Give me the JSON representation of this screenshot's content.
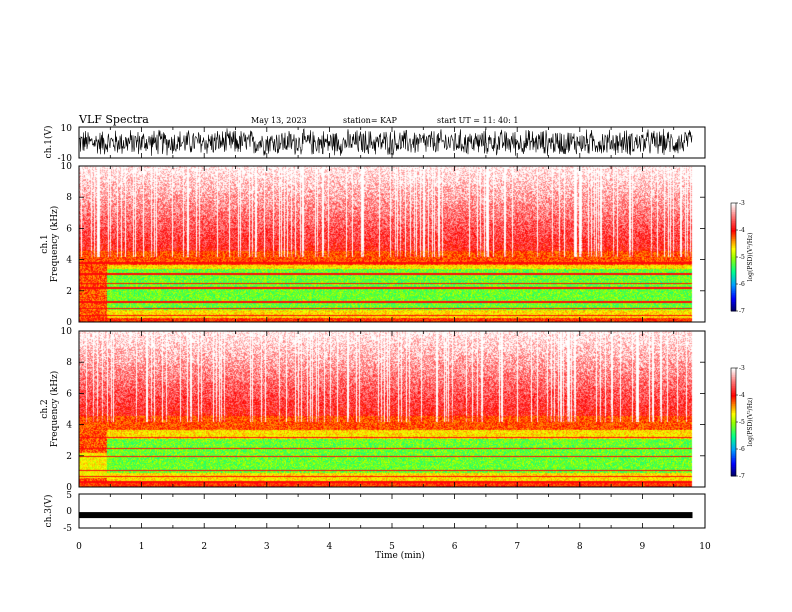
{
  "header": {
    "title": "VLF Spectra",
    "date": "May 13, 2023",
    "station": "station= KAP",
    "start": "start  UT =   11: 40: 1"
  },
  "chart_data": [
    {
      "type": "line",
      "panel": "ch1-waveform",
      "ylabel": "ch.1(V)",
      "ylim": [
        -10,
        10
      ],
      "y_ticks": [
        "-10",
        "10"
      ],
      "xlim": [
        0,
        10
      ],
      "trace_color": "#000000",
      "trace_extent_min": 9.8
    },
    {
      "type": "heatmap",
      "panel": "ch1-spectrogram",
      "ylabel": "ch.1\nFrequency (kHz)",
      "ylim": [
        0,
        10
      ],
      "y_ticks": [
        "0",
        "2",
        "4",
        "6",
        "8",
        "10"
      ],
      "xlim": [
        0,
        10
      ],
      "colorbar": {
        "label": "log(PSD)(V²/Hz)",
        "range": [
          -7,
          -3
        ],
        "ticks": [
          "-3",
          "-4",
          "-5",
          "-6",
          "-7"
        ]
      }
    },
    {
      "type": "heatmap",
      "panel": "ch2-spectrogram",
      "ylabel": "ch.2\nFrequency (kHz)",
      "ylim": [
        0,
        10
      ],
      "y_ticks": [
        "0",
        "2",
        "4",
        "6",
        "8",
        "10"
      ],
      "xlim": [
        0,
        10
      ],
      "colorbar": {
        "label": "log(PSD)(V²/Hz)",
        "range": [
          -7,
          -3
        ],
        "ticks": [
          "-3",
          "-4",
          "-5",
          "-6",
          "-7"
        ]
      }
    },
    {
      "type": "line",
      "panel": "ch3-waveform",
      "ylabel": "ch.3(V)",
      "ylim": [
        -5,
        5
      ],
      "y_ticks": [
        "-5",
        "0",
        "5"
      ],
      "xlim": [
        0,
        10
      ],
      "trace_color": "#000000",
      "trace_level_v": -1.2
    }
  ],
  "x_axis": {
    "label": "Time (min)",
    "ticks": [
      "0",
      "1",
      "2",
      "3",
      "4",
      "5",
      "6",
      "7",
      "8",
      "9",
      "10"
    ]
  },
  "colors": {
    "frame": "#000000",
    "palette": [
      "#000080",
      "#0000ff",
      "#00a0ff",
      "#00ff80",
      "#a0ff00",
      "#ffff00",
      "#ff8000",
      "#ff0000",
      "#ff8080",
      "#ffffff"
    ]
  }
}
